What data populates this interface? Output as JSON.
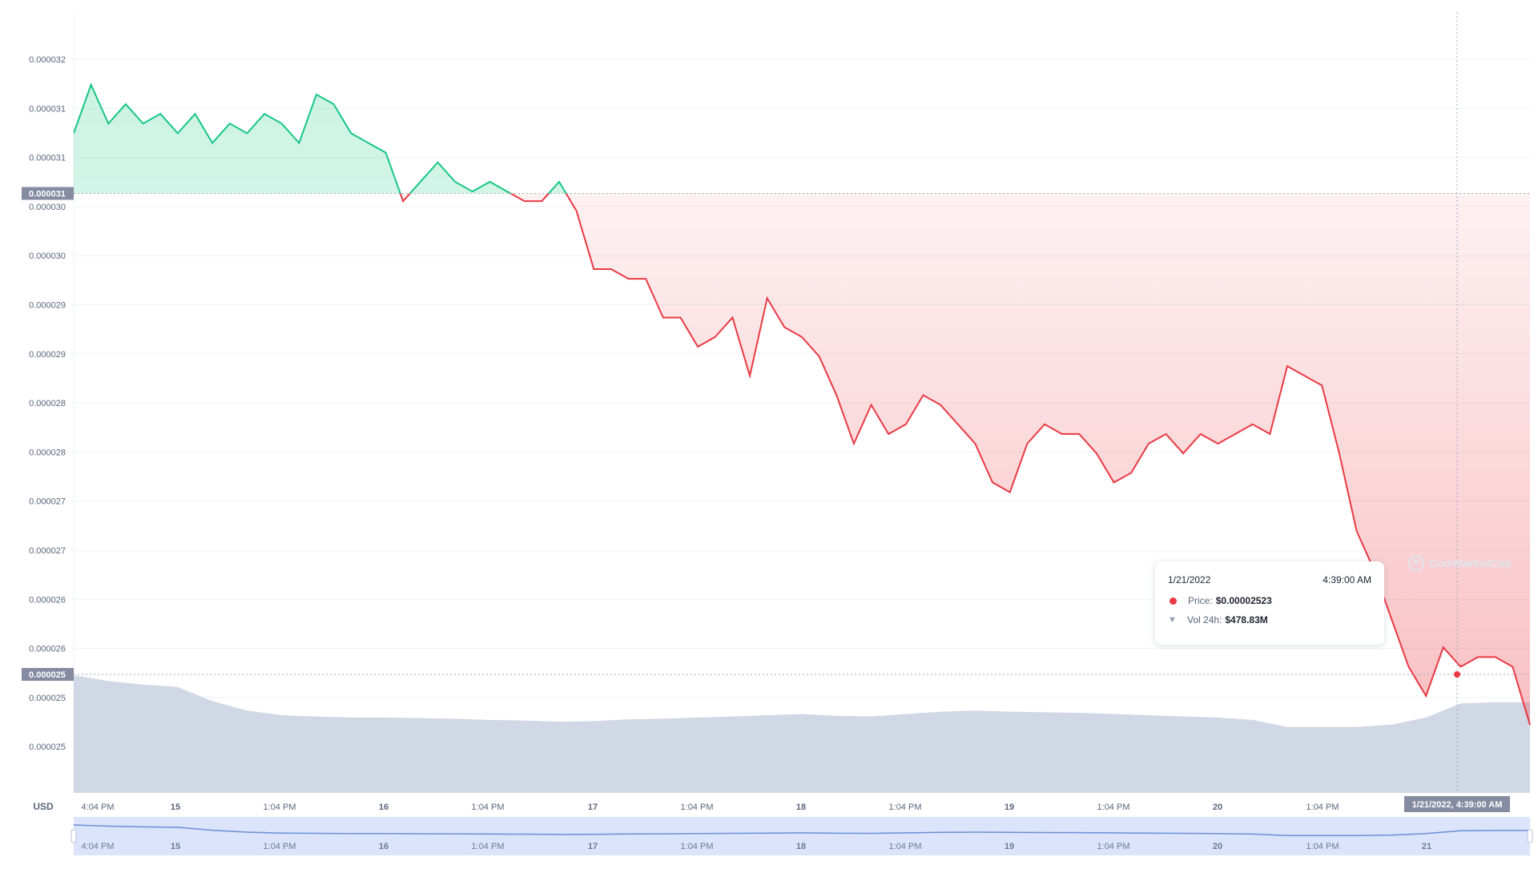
{
  "chart_data": {
    "type": "area",
    "currency_label": "USD",
    "y_tick_labels": [
      "0.000032",
      "0.000031",
      "0.000031",
      "0.000030",
      "0.000030",
      "0.000029",
      "0.000029",
      "0.000028",
      "0.000028",
      "0.000027",
      "0.000027",
      "0.000026",
      "0.000026",
      "0.000025",
      "0.000025"
    ],
    "ylim": [
      2.45e-05,
      3.255e-05
    ],
    "x_tick_labels": [
      "4:04 PM",
      "15",
      "1:04 PM",
      "16",
      "1:04 PM",
      "17",
      "1:04 PM",
      "18",
      "1:04 PM",
      "19",
      "1:04 PM",
      "20",
      "1:04 PM"
    ],
    "navigator_tick_labels": [
      "4:04 PM",
      "15",
      "1:04 PM",
      "16",
      "1:04 PM",
      "17",
      "1:04 PM",
      "18",
      "1:04 PM",
      "19",
      "1:04 PM",
      "20",
      "1:04 PM",
      "21"
    ],
    "x_range_hours": [
      0,
      168
    ],
    "reference_price": 3.068e-05,
    "reference_label": "0.000031",
    "current_price_label": "0.000025",
    "price_series": {
      "x_hours": [
        0,
        2,
        4,
        6,
        8,
        10,
        12,
        14,
        16,
        18,
        20,
        22,
        24,
        26,
        28,
        30,
        32,
        34,
        36,
        38,
        40,
        42,
        44,
        46,
        48,
        50,
        52,
        54,
        56,
        58,
        60,
        62,
        64,
        66,
        68,
        70,
        72,
        74,
        76,
        78,
        80,
        82,
        84,
        86,
        88,
        90,
        92,
        94,
        96,
        98,
        100,
        102,
        104,
        106,
        108,
        110,
        112,
        114,
        116,
        118,
        120,
        122,
        124,
        126,
        128,
        130,
        132,
        134,
        136,
        138,
        140,
        142,
        144,
        146,
        148,
        150,
        152,
        154,
        156,
        158,
        160,
        162,
        164,
        166,
        168
      ],
      "y": [
        3.13e-05,
        3.18e-05,
        3.14e-05,
        3.16e-05,
        3.14e-05,
        3.15e-05,
        3.13e-05,
        3.15e-05,
        3.12e-05,
        3.14e-05,
        3.13e-05,
        3.15e-05,
        3.14e-05,
        3.12e-05,
        3.17e-05,
        3.16e-05,
        3.13e-05,
        3.12e-05,
        3.11e-05,
        3.06e-05,
        3.08e-05,
        3.1e-05,
        3.08e-05,
        3.07e-05,
        3.08e-05,
        3.07e-05,
        3.06e-05,
        3.06e-05,
        3.08e-05,
        3.05e-05,
        2.99e-05,
        2.99e-05,
        2.98e-05,
        2.98e-05,
        2.94e-05,
        2.94e-05,
        2.91e-05,
        2.92e-05,
        2.94e-05,
        2.88e-05,
        2.96e-05,
        2.93e-05,
        2.92e-05,
        2.9e-05,
        2.86e-05,
        2.81e-05,
        2.85e-05,
        2.82e-05,
        2.83e-05,
        2.86e-05,
        2.85e-05,
        2.83e-05,
        2.81e-05,
        2.77e-05,
        2.76e-05,
        2.81e-05,
        2.83e-05,
        2.82e-05,
        2.82e-05,
        2.8e-05,
        2.77e-05,
        2.78e-05,
        2.81e-05,
        2.82e-05,
        2.8e-05,
        2.82e-05,
        2.81e-05,
        2.82e-05,
        2.83e-05,
        2.82e-05,
        2.89e-05,
        2.88e-05,
        2.87e-05,
        2.8e-05,
        2.72e-05,
        2.68e-05,
        2.63e-05,
        2.58e-05,
        2.55e-05,
        2.6e-05,
        2.58e-05,
        2.59e-05,
        2.59e-05,
        2.58e-05,
        2.52e-05
      ]
    },
    "volume_series": {
      "x_hours": [
        0,
        4,
        8,
        12,
        16,
        20,
        24,
        28,
        32,
        36,
        40,
        44,
        48,
        52,
        56,
        60,
        64,
        68,
        72,
        76,
        80,
        84,
        88,
        92,
        96,
        100,
        104,
        108,
        112,
        116,
        120,
        124,
        128,
        132,
        136,
        140,
        144,
        148,
        152,
        156,
        160,
        164,
        168
      ],
      "y_millions": [
        1000,
        950,
        920,
        900,
        780,
        700,
        660,
        650,
        640,
        640,
        635,
        630,
        620,
        615,
        605,
        610,
        625,
        630,
        640,
        650,
        660,
        670,
        655,
        650,
        670,
        690,
        700,
        690,
        685,
        680,
        670,
        660,
        650,
        640,
        620,
        560,
        560,
        560,
        580,
        640,
        760,
        770,
        770
      ]
    },
    "navigator_series_y_millions": [
      1000,
      950,
      920,
      900,
      780,
      700,
      660,
      650,
      640,
      640,
      635,
      630,
      620,
      615,
      605,
      610,
      625,
      630,
      640,
      650,
      660,
      670,
      655,
      650,
      670,
      690,
      700,
      690,
      685,
      680,
      670,
      660,
      650,
      640,
      620,
      560,
      560,
      560,
      580,
      640,
      760,
      770,
      770
    ],
    "crosshair_label": "1/21/2022, 4:39:00 AM",
    "tooltip": {
      "date": "1/21/2022",
      "time": "4:39:00 AM",
      "price_label": "Price:",
      "price_value": "$0.00002523",
      "volume_label": "Vol 24h:",
      "volume_value": "$478.83M"
    },
    "colors": {
      "up": "#16c784",
      "down": "#ea3943",
      "volume": "#cfd6e4",
      "navigator": "#dbe4fb",
      "navigator_line": "#6c8fd4",
      "label_bg": "#858ca2",
      "grid": "#eff2f5"
    },
    "watermark": "CoinMarketCap"
  }
}
